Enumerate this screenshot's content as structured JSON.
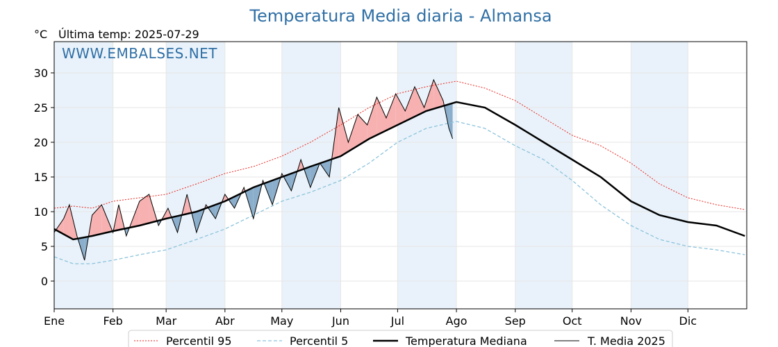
{
  "header": {
    "title": "Temperatura Media diaria - Almansa",
    "unit": "°C",
    "subtitle": "Última temp: 2025-07-29",
    "watermark": "WWW.EMBALSES.NET"
  },
  "colors": {
    "p95": "#e8251e",
    "p5": "#8cc3dc",
    "median": "#000000",
    "current": "#000000",
    "above_fill": "#f7b1b1",
    "below_fill": "#8aaecb",
    "band": "#e9f2fa",
    "title": "#2f6fa5"
  },
  "chart_data": {
    "type": "line",
    "title": "Temperatura Media diaria - Almansa",
    "ylabel": "°C",
    "ylim": [
      -4,
      34.5
    ],
    "xlim": [
      0,
      365
    ],
    "yticks": [
      0,
      5,
      10,
      15,
      20,
      25,
      30
    ],
    "months": [
      {
        "label": "Ene",
        "start": 0
      },
      {
        "label": "Feb",
        "start": 31
      },
      {
        "label": "Mar",
        "start": 59
      },
      {
        "label": "Abr",
        "start": 90
      },
      {
        "label": "May",
        "start": 120
      },
      {
        "label": "Jun",
        "start": 151
      },
      {
        "label": "Jul",
        "start": 181
      },
      {
        "label": "Ago",
        "start": 212
      },
      {
        "label": "Sep",
        "start": 243
      },
      {
        "label": "Oct",
        "start": 273
      },
      {
        "label": "Nov",
        "start": 304
      },
      {
        "label": "Dic",
        "start": 334
      }
    ],
    "legend_position": "bottom",
    "series": [
      {
        "name": "Percentil 95",
        "style": "dotted",
        "x": [
          0,
          10,
          20,
          31,
          45,
          59,
          75,
          90,
          105,
          120,
          135,
          151,
          166,
          181,
          196,
          212,
          227,
          243,
          258,
          273,
          288,
          304,
          319,
          334,
          349,
          364
        ],
        "y": [
          10.5,
          10.8,
          10.5,
          11.5,
          12.0,
          12.5,
          14.0,
          15.5,
          16.5,
          18.0,
          20.0,
          22.5,
          25.0,
          27.0,
          28.0,
          28.8,
          27.8,
          26.0,
          23.5,
          21.0,
          19.5,
          17.0,
          14.0,
          12.0,
          11.0,
          10.3
        ]
      },
      {
        "name": "Percentil 5",
        "style": "dashed",
        "x": [
          0,
          10,
          20,
          31,
          45,
          59,
          75,
          90,
          105,
          120,
          135,
          151,
          166,
          181,
          196,
          212,
          227,
          243,
          258,
          273,
          288,
          304,
          319,
          334,
          349,
          364
        ],
        "y": [
          3.5,
          2.5,
          2.5,
          3.0,
          3.8,
          4.5,
          6.0,
          7.5,
          9.5,
          11.5,
          12.8,
          14.5,
          17.0,
          20.0,
          22.0,
          23.0,
          22.0,
          19.5,
          17.5,
          14.5,
          11.0,
          8.0,
          6.0,
          5.0,
          4.5,
          3.8
        ]
      },
      {
        "name": "Temperatura Mediana",
        "style": "thick",
        "x": [
          0,
          10,
          20,
          31,
          45,
          59,
          75,
          90,
          105,
          120,
          135,
          151,
          166,
          181,
          196,
          212,
          227,
          243,
          258,
          273,
          288,
          304,
          319,
          334,
          349,
          364
        ],
        "y": [
          7.5,
          6.0,
          6.5,
          7.2,
          8.0,
          9.0,
          10.0,
          11.5,
          13.5,
          15.0,
          16.5,
          18.0,
          20.5,
          22.5,
          24.5,
          25.8,
          25.0,
          22.5,
          20.0,
          17.5,
          15.0,
          11.5,
          9.5,
          8.5,
          8.0,
          6.5
        ]
      },
      {
        "name": "T. Media 2025",
        "style": "thin",
        "x": [
          0,
          5,
          8,
          12,
          16,
          20,
          25,
          31,
          34,
          38,
          45,
          50,
          55,
          60,
          65,
          70,
          75,
          80,
          85,
          90,
          95,
          100,
          105,
          110,
          115,
          120,
          125,
          130,
          135,
          140,
          145,
          150,
          155,
          160,
          165,
          170,
          175,
          180,
          185,
          190,
          195,
          200,
          205,
          208,
          210
        ],
        "y": [
          7.0,
          9.0,
          11.0,
          6.5,
          3.0,
          9.5,
          11.0,
          7.0,
          11.0,
          6.5,
          11.5,
          12.5,
          8.0,
          10.5,
          7.0,
          12.5,
          7.0,
          11.0,
          9.0,
          12.5,
          10.5,
          13.5,
          9.0,
          14.5,
          11.0,
          15.5,
          13.0,
          17.5,
          13.5,
          17.0,
          15.0,
          25.0,
          20.0,
          24.0,
          22.5,
          26.5,
          23.5,
          27.0,
          24.5,
          28.0,
          25.0,
          29.0,
          26.0,
          22.0,
          20.5
        ]
      }
    ]
  },
  "legend": {
    "items": [
      "Percentil 95",
      "Percentil 5",
      "Temperatura Mediana",
      "T. Media 2025"
    ]
  }
}
